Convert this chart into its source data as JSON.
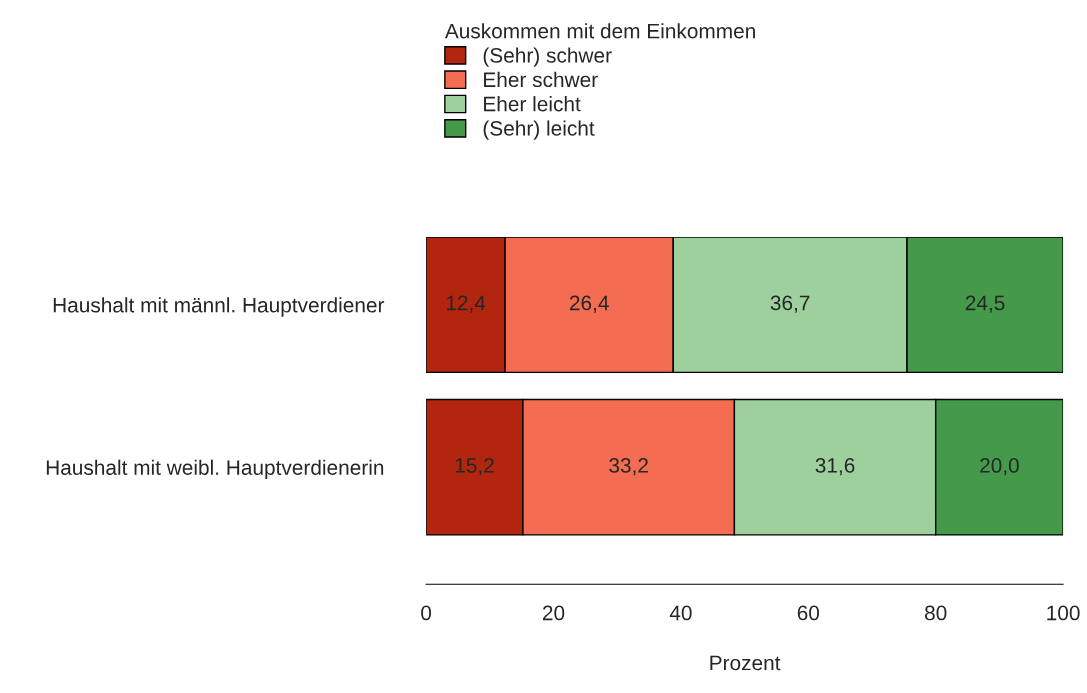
{
  "chart_data": {
    "type": "bar",
    "orientation": "horizontal",
    "stacked": true,
    "categories": [
      "Haushalt mit männl. Hauptverdiener",
      "Haushalt mit weibl. Hauptverdienerin"
    ],
    "series": [
      {
        "name": "(Sehr) schwer",
        "color": "#b2260f",
        "values": [
          12.4,
          15.2
        ],
        "value_labels": [
          "12,4",
          "15,2"
        ]
      },
      {
        "name": "Eher schwer",
        "color": "#f46d52",
        "values": [
          26.4,
          33.2
        ],
        "value_labels": [
          "26,4",
          "33,2"
        ]
      },
      {
        "name": "Eher leicht",
        "color": "#9dd09d",
        "values": [
          36.7,
          31.6
        ],
        "value_labels": [
          "36,7",
          "31,6"
        ]
      },
      {
        "name": "(Sehr) leicht",
        "color": "#449a4a",
        "values": [
          24.5,
          20.0
        ],
        "value_labels": [
          "24,5",
          "20,0"
        ]
      }
    ],
    "xlabel": "Prozent",
    "xlim": [
      0,
      100
    ],
    "xticks": [
      0,
      20,
      40,
      60,
      80,
      100
    ],
    "legend_title": "Auskommen mit dem Einkommen",
    "legend": "top",
    "grid": false
  }
}
